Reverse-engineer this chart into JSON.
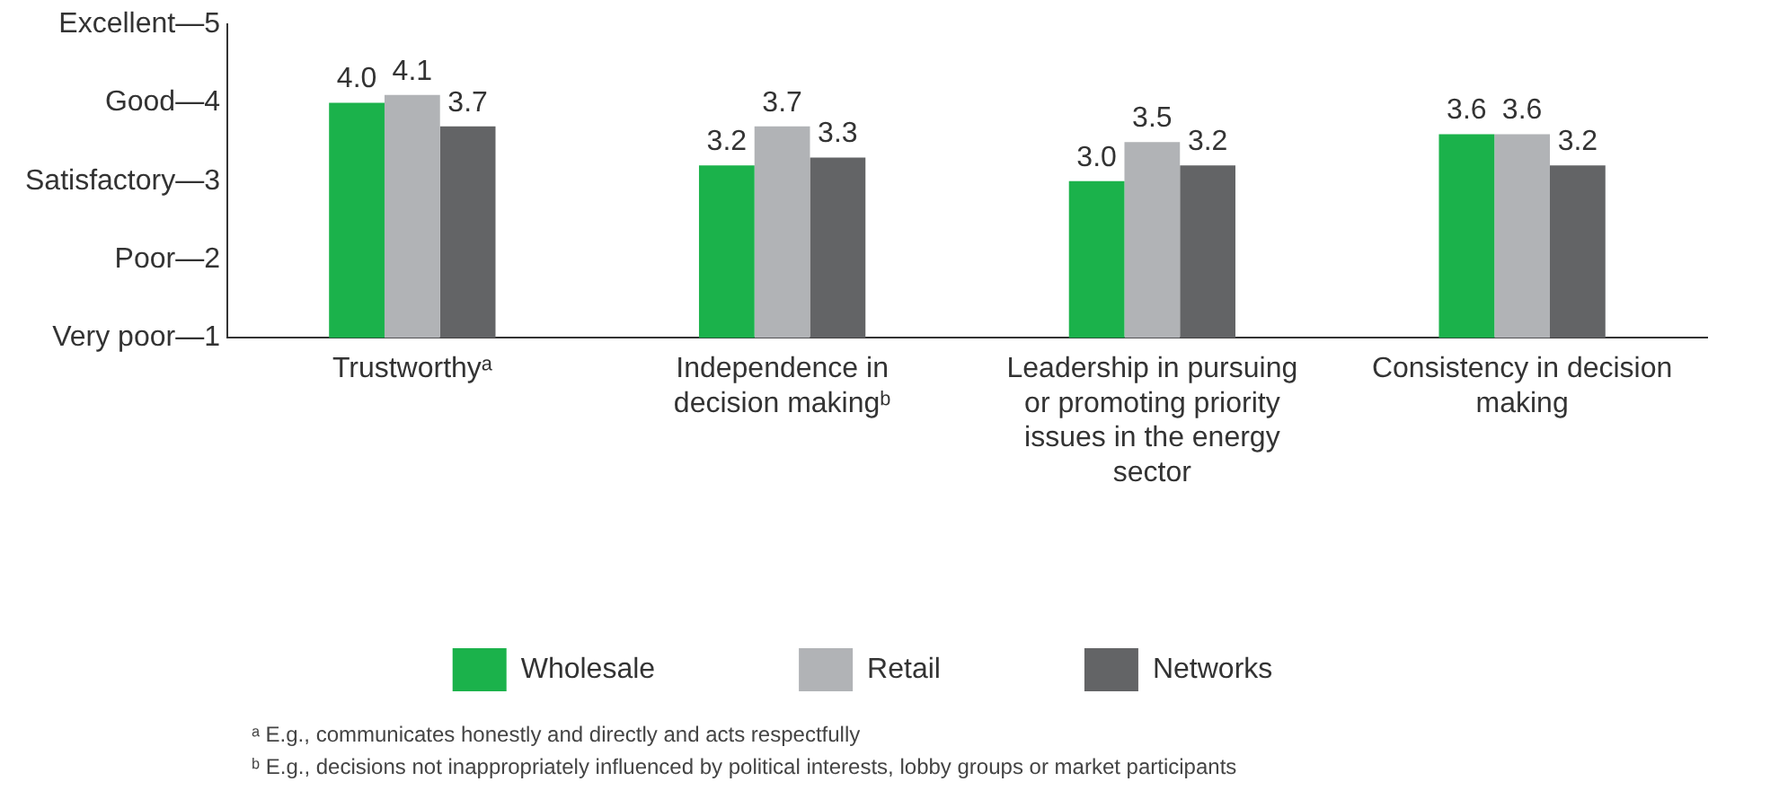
{
  "chart_data": {
    "type": "bar",
    "categories": [
      "Trustworthyᵃ",
      "Independence in decision makingᵇ",
      "Leadership in pursuing or promoting priority issues in the energy sector",
      "Consistency in decision making"
    ],
    "series": [
      {
        "name": "Wholesale",
        "color": "#1bb24b",
        "values": [
          4.0,
          3.2,
          3.0,
          3.6
        ],
        "value_labels": [
          "4.0",
          "3.2",
          "3.0",
          "3.6"
        ]
      },
      {
        "name": "Retail",
        "color": "#b1b3b6",
        "values": [
          4.1,
          3.7,
          3.5,
          3.6
        ],
        "value_labels": [
          "4.1",
          "3.7",
          "3.5",
          "3.6"
        ]
      },
      {
        "name": "Networks",
        "color": "#636466",
        "values": [
          3.7,
          3.3,
          3.2,
          3.2
        ],
        "value_labels": [
          "3.7",
          "3.3",
          "3.2",
          "3.2"
        ]
      }
    ],
    "ylim": [
      1,
      5
    ],
    "yticks": [
      {
        "value": 1,
        "label": "Very poor—1"
      },
      {
        "value": 2,
        "label": "Poor—2"
      },
      {
        "value": 3,
        "label": "Satisfactory—3"
      },
      {
        "value": 4,
        "label": "Good—4"
      },
      {
        "value": 5,
        "label": "Excellent—5"
      }
    ],
    "grid": false,
    "legend": "bottom",
    "annotations": [
      "ᵃ E.g., communicates honestly and directly and acts respectfully",
      "ᵇ E.g., decisions not inappropriately influenced by political interests, lobby groups or market participants"
    ]
  }
}
